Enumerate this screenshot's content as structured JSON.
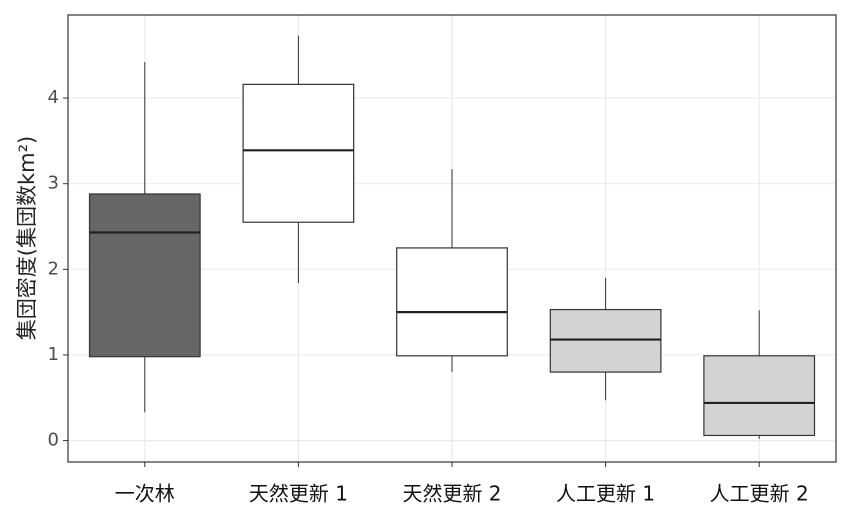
{
  "chart_data": {
    "type": "box",
    "ylabel": "集団密度(集団数km²)",
    "categories": [
      "一次林",
      "天然更新 1",
      "天然更新 2",
      "人工更新 1",
      "人工更新 2"
    ],
    "boxes": [
      {
        "low": 0.33,
        "q1": 0.98,
        "median": 2.43,
        "q3": 2.88,
        "high": 4.42
      },
      {
        "low": 1.84,
        "q1": 2.55,
        "median": 3.39,
        "q3": 4.16,
        "high": 4.73
      },
      {
        "low": 0.8,
        "q1": 0.99,
        "median": 1.5,
        "q3": 2.25,
        "high": 3.17
      },
      {
        "low": 0.47,
        "q1": 0.8,
        "median": 1.18,
        "q3": 1.53,
        "high": 1.9
      },
      {
        "low": 0.02,
        "q1": 0.06,
        "median": 0.44,
        "q3": 0.99,
        "high": 1.52
      }
    ],
    "colors": [
      "#666666",
      "#ffffff",
      "#ffffff",
      "#d3d3d3",
      "#d3d3d3"
    ],
    "ylim": [
      -0.25,
      4.97
    ],
    "yticks": [
      0,
      1,
      2,
      3,
      4
    ],
    "grid": true
  }
}
